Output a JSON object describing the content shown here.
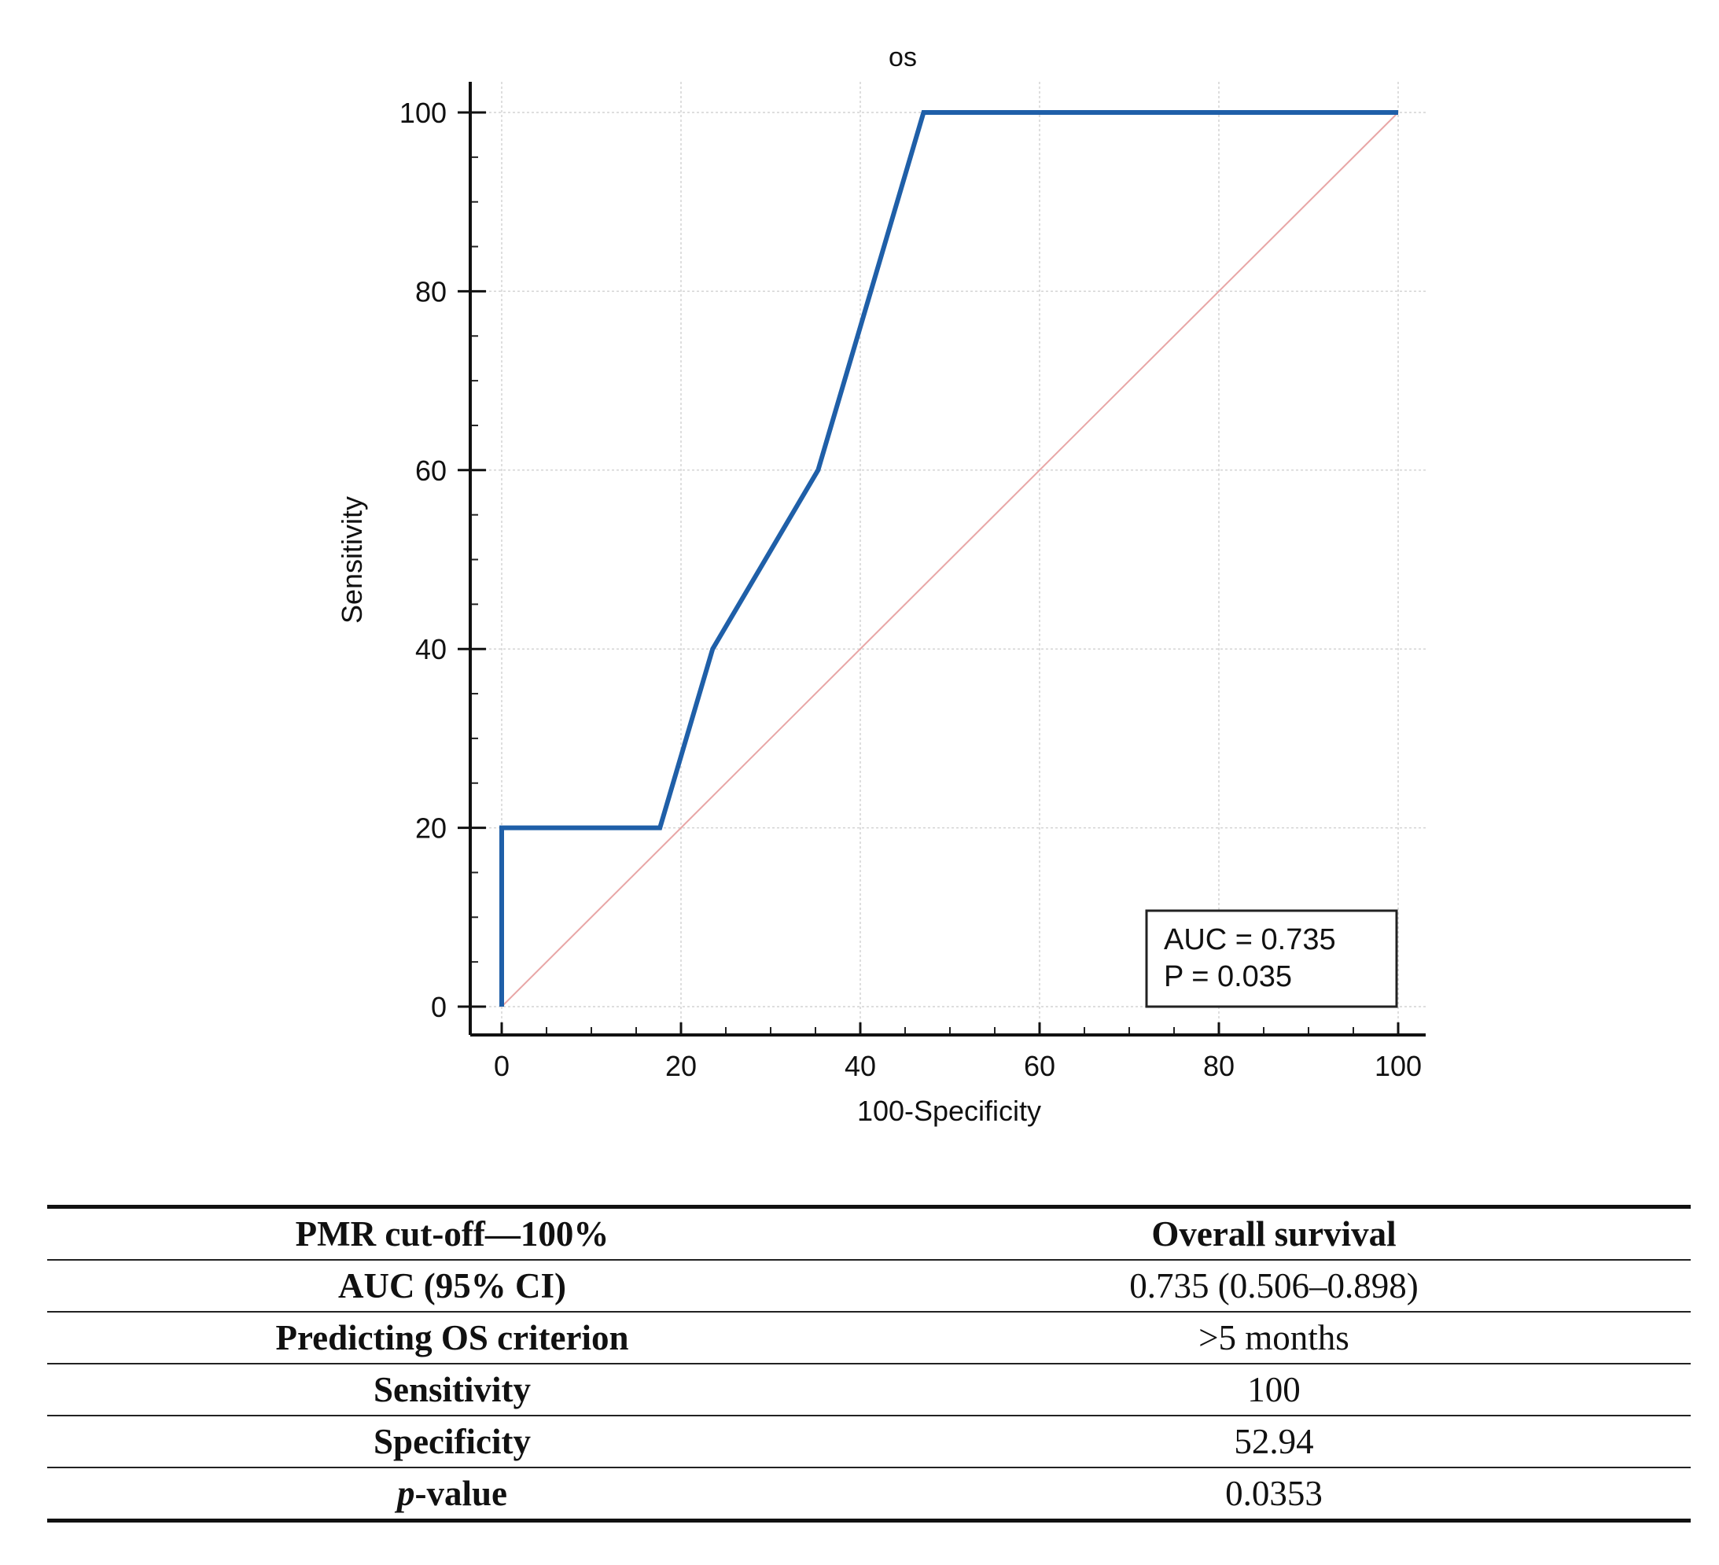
{
  "chart_data": {
    "type": "line",
    "title": "os",
    "xlabel": "100-Specificity",
    "ylabel": "Sensitivity",
    "xlim": [
      0,
      100
    ],
    "ylim": [
      0,
      100
    ],
    "x_ticks": [
      0,
      20,
      40,
      60,
      80,
      100
    ],
    "y_ticks": [
      0,
      20,
      40,
      60,
      80,
      100
    ],
    "grid": true,
    "series": [
      {
        "color": "#1f5fa8",
        "points": [
          [
            0,
            0
          ],
          [
            0,
            20
          ],
          [
            17.65,
            20
          ],
          [
            23.53,
            40
          ],
          [
            35.29,
            60
          ],
          [
            47.06,
            100
          ],
          [
            100,
            100
          ]
        ]
      },
      {
        "color": "#e8a6a6",
        "points": [
          [
            0,
            0
          ],
          [
            100,
            100
          ]
        ]
      }
    ],
    "annotation": {
      "auc_text": "AUC = 0.735",
      "p_text": "P = 0.035"
    }
  },
  "table": {
    "rows": [
      {
        "label": "PMR cut-off—100%",
        "value": "Overall survival",
        "value_bold": true
      },
      {
        "label": "AUC (95% CI)",
        "value": "0.735 (0.506–0.898)"
      },
      {
        "label": "Predicting OS criterion",
        "value": ">5 months"
      },
      {
        "label": "Sensitivity",
        "value": "100"
      },
      {
        "label": "Specificity",
        "value": "52.94"
      }
    ],
    "pvalue_row": {
      "label_italic": "p",
      "label_rest": "-value",
      "value": "0.0353"
    }
  }
}
